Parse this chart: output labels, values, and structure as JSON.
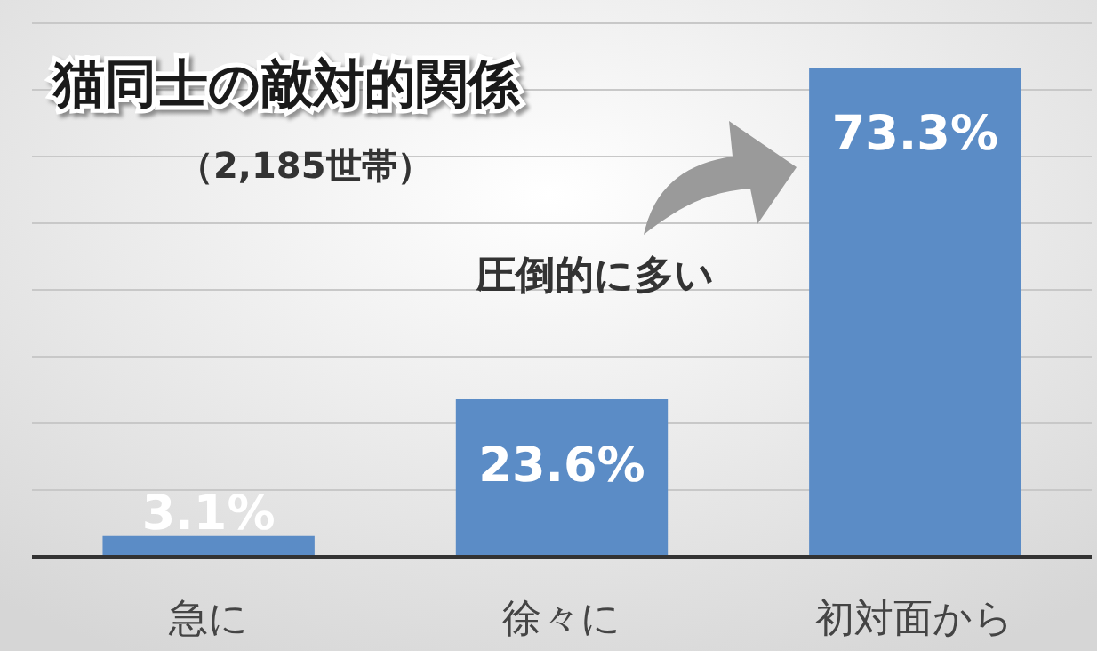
{
  "chart_data": {
    "type": "bar",
    "title": "猫同士の敵対的関係",
    "subtitle": "（2,185世帯）",
    "categories": [
      "急に",
      "徐々に",
      "初対面から"
    ],
    "values": [
      3.1,
      23.6,
      73.3
    ],
    "value_labels": [
      "3.1%",
      "23.6%",
      "73.3%"
    ],
    "color": "#5b8cc6",
    "ylim": [
      0,
      80
    ],
    "yticks": [
      {
        "value": 0,
        "label": null
      },
      {
        "value": 10,
        "label": null
      },
      {
        "value": 20,
        "label": null
      },
      {
        "value": 30,
        "label": null
      },
      {
        "value": 40,
        "label": null
      },
      {
        "value": 50,
        "label": null
      },
      {
        "value": 60,
        "label": null
      },
      {
        "value": 70,
        "label": null
      },
      {
        "value": 80,
        "label": null
      }
    ],
    "grid": "y",
    "tick_labels": "x",
    "annotations": [
      "圧倒的に多い"
    ]
  }
}
